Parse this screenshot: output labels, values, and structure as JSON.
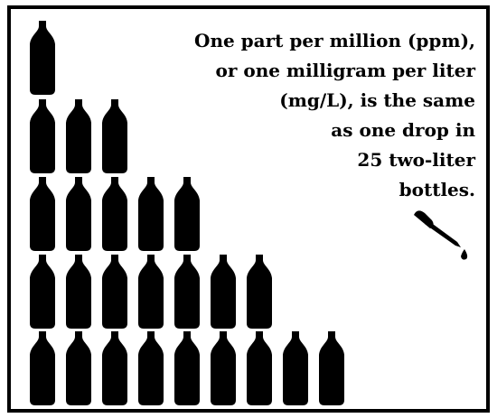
{
  "text": {
    "lines": [
      "One part per million (ppm),",
      "or one milligram per liter",
      "(mg/L), is the same",
      "as one drop in",
      "25 two-liter",
      "bottles."
    ]
  }
}
